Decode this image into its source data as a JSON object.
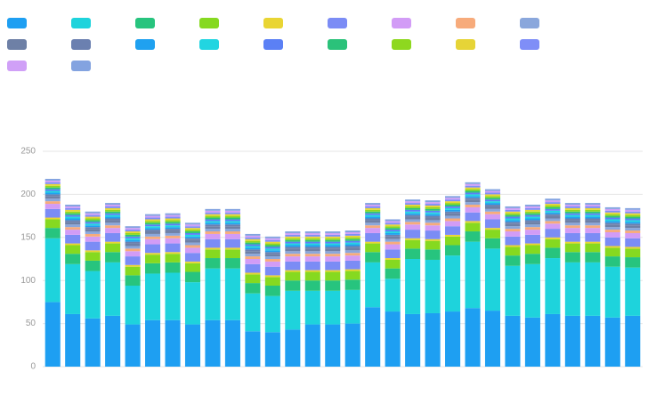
{
  "chart_data": {
    "type": "stacked_bar",
    "categories": [
      null,
      null,
      null,
      null,
      null,
      null,
      null,
      null,
      null,
      null,
      null,
      null,
      null,
      null,
      null,
      null,
      null,
      null,
      null,
      null,
      null,
      null,
      null,
      null,
      null,
      null,
      null,
      null,
      null,
      null
    ],
    "ylim": [
      0,
      250
    ],
    "yticks": [
      0,
      50,
      100,
      150,
      200,
      250
    ],
    "grid": true,
    "legend": "top",
    "series": [
      {
        "color": "#1e9ff2",
        "values": [
          75,
          61,
          56,
          59,
          49,
          54,
          54,
          49,
          54,
          54,
          41,
          40,
          43,
          49,
          49,
          50,
          69,
          64,
          61,
          62,
          64,
          68,
          65,
          59,
          57,
          61,
          59,
          59,
          57,
          59
        ]
      },
      {
        "color": "#1ed3dc",
        "values": [
          74,
          58,
          55,
          62,
          45,
          54,
          55,
          49,
          60,
          60,
          44,
          42,
          45,
          39,
          39,
          39,
          52,
          38,
          64,
          62,
          65,
          77,
          72,
          58,
          62,
          65,
          62,
          62,
          59,
          56
        ]
      },
      {
        "color": "#27c47e",
        "values": [
          12,
          12,
          12,
          12,
          12,
          12,
          12,
          12,
          12,
          12,
          12,
          12,
          12,
          12,
          12,
          12,
          12,
          12,
          12,
          12,
          12,
          12,
          12,
          12,
          12,
          12,
          12,
          12,
          12,
          12
        ]
      },
      {
        "color": "#86d920",
        "values": [
          10,
          10,
          10,
          10,
          10,
          10,
          10,
          10,
          10,
          10,
          10,
          10,
          10,
          10,
          10,
          10,
          10,
          10,
          10,
          10,
          10,
          10,
          10,
          10,
          10,
          10,
          10,
          10,
          10,
          10
        ]
      },
      {
        "color": "#e9d533",
        "values": [
          2,
          2,
          2,
          2,
          2,
          2,
          2,
          2,
          2,
          2,
          2,
          2,
          2,
          2,
          2,
          2,
          2,
          2,
          2,
          2,
          2,
          2,
          2,
          2,
          2,
          2,
          2,
          2,
          2,
          2
        ]
      },
      {
        "color": "#7b8cf5",
        "values": [
          10,
          10,
          10,
          10,
          10,
          10,
          10,
          10,
          10,
          10,
          10,
          10,
          10,
          10,
          10,
          10,
          10,
          10,
          10,
          10,
          10,
          10,
          10,
          10,
          10,
          10,
          10,
          10,
          10,
          10
        ]
      },
      {
        "color": "#d29cf6",
        "values": [
          6,
          6,
          6,
          6,
          6,
          6,
          6,
          6,
          6,
          6,
          6,
          6,
          6,
          6,
          6,
          6,
          6,
          6,
          6,
          6,
          6,
          6,
          6,
          6,
          6,
          6,
          6,
          6,
          6,
          6
        ]
      },
      {
        "color": "#f7ab7b",
        "values": [
          3,
          3,
          3,
          3,
          3,
          3,
          3,
          3,
          3,
          3,
          3,
          3,
          3,
          3,
          3,
          3,
          3,
          3,
          3,
          3,
          3,
          3,
          3,
          3,
          3,
          3,
          3,
          3,
          3,
          3
        ]
      },
      {
        "color": "#8aa7dc",
        "values": [
          3,
          3,
          3,
          3,
          3,
          3,
          3,
          3,
          3,
          3,
          3,
          3,
          3,
          3,
          3,
          3,
          3,
          3,
          3,
          3,
          3,
          3,
          3,
          3,
          3,
          3,
          3,
          3,
          3,
          3
        ]
      },
      {
        "color": "#6e80a6",
        "values": [
          3,
          3,
          3,
          3,
          3,
          3,
          3,
          3,
          3,
          3,
          3,
          3,
          3,
          3,
          3,
          3,
          3,
          3,
          3,
          3,
          3,
          3,
          3,
          3,
          3,
          3,
          3,
          3,
          3,
          3
        ]
      },
      {
        "color": "#6b80b0",
        "values": [
          2,
          2,
          2,
          2,
          2,
          2,
          2,
          2,
          2,
          2,
          2,
          2,
          2,
          2,
          2,
          2,
          2,
          2,
          2,
          2,
          2,
          2,
          2,
          2,
          2,
          2,
          2,
          2,
          2,
          2
        ]
      },
      {
        "color": "#1fa1f0",
        "values": [
          2,
          2,
          2,
          2,
          2,
          2,
          2,
          2,
          2,
          2,
          2,
          2,
          2,
          2,
          2,
          2,
          2,
          2,
          2,
          2,
          2,
          2,
          2,
          2,
          2,
          2,
          2,
          2,
          2,
          2
        ]
      },
      {
        "color": "#22d5e1",
        "values": [
          2,
          2,
          2,
          2,
          2,
          2,
          2,
          2,
          2,
          2,
          2,
          2,
          2,
          2,
          2,
          2,
          2,
          2,
          2,
          2,
          2,
          2,
          2,
          2,
          2,
          2,
          2,
          2,
          2,
          2
        ]
      },
      {
        "color": "#5b80f5",
        "values": [
          2,
          2,
          2,
          2,
          2,
          2,
          2,
          2,
          2,
          2,
          2,
          2,
          2,
          2,
          2,
          2,
          2,
          2,
          2,
          2,
          2,
          2,
          2,
          2,
          2,
          2,
          2,
          2,
          2,
          2
        ]
      },
      {
        "color": "#2bc27a",
        "values": [
          2,
          2,
          2,
          2,
          2,
          2,
          2,
          2,
          2,
          2,
          2,
          2,
          2,
          2,
          2,
          2,
          2,
          2,
          2,
          2,
          2,
          2,
          2,
          2,
          2,
          2,
          2,
          2,
          2,
          2
        ]
      },
      {
        "color": "#8ed81f",
        "values": [
          2,
          2,
          2,
          2,
          2,
          2,
          2,
          2,
          2,
          2,
          2,
          2,
          2,
          2,
          2,
          2,
          2,
          2,
          2,
          2,
          2,
          2,
          2,
          2,
          2,
          2,
          2,
          2,
          2,
          2
        ]
      },
      {
        "color": "#e6d437",
        "values": [
          2,
          2,
          2,
          2,
          2,
          2,
          2,
          2,
          2,
          2,
          2,
          2,
          2,
          2,
          2,
          2,
          2,
          2,
          2,
          2,
          2,
          2,
          2,
          2,
          2,
          2,
          2,
          2,
          2,
          2
        ]
      },
      {
        "color": "#7f8ef7",
        "values": [
          2,
          2,
          2,
          2,
          2,
          2,
          2,
          2,
          2,
          2,
          2,
          2,
          2,
          2,
          2,
          2,
          2,
          2,
          2,
          2,
          2,
          2,
          2,
          2,
          2,
          2,
          2,
          2,
          2,
          2
        ]
      },
      {
        "color": "#d0a0f7",
        "values": [
          2,
          2,
          2,
          2,
          2,
          2,
          2,
          2,
          2,
          2,
          2,
          2,
          2,
          2,
          2,
          2,
          2,
          2,
          2,
          2,
          2,
          2,
          2,
          2,
          2,
          2,
          2,
          2,
          2,
          2
        ]
      },
      {
        "color": "#83a3e0",
        "values": [
          2,
          2,
          2,
          2,
          2,
          2,
          2,
          2,
          2,
          2,
          2,
          2,
          2,
          2,
          2,
          2,
          2,
          2,
          2,
          2,
          2,
          2,
          2,
          2,
          2,
          2,
          2,
          2,
          2,
          2
        ]
      }
    ]
  }
}
